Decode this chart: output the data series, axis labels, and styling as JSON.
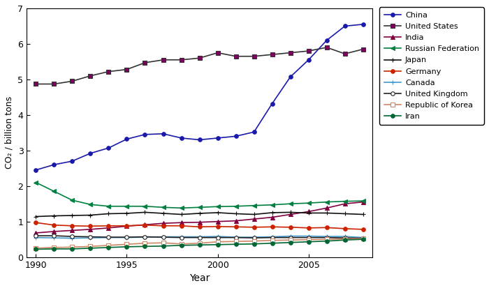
{
  "years": [
    1990,
    1991,
    1992,
    1993,
    1994,
    1995,
    1996,
    1997,
    1998,
    1999,
    2000,
    2001,
    2002,
    2003,
    2004,
    2005,
    2006,
    2007,
    2008
  ],
  "series": [
    {
      "name": "China",
      "color": "#1a1aaa",
      "line_color": "#1a1aaa",
      "marker": "o",
      "mfc": "#1a1aaa",
      "ms": 4,
      "lw": 1.2,
      "values": [
        2.45,
        2.6,
        2.7,
        2.92,
        3.07,
        3.32,
        3.45,
        3.47,
        3.35,
        3.3,
        3.35,
        3.4,
        3.52,
        4.32,
        5.07,
        5.55,
        6.1,
        6.5,
        6.55
      ]
    },
    {
      "name": "United States",
      "color": "#333333",
      "line_color": "#333333",
      "marker": "s",
      "mfc": "#800060",
      "ms": 4,
      "lw": 1.2,
      "values": [
        4.87,
        4.87,
        4.95,
        5.1,
        5.22,
        5.28,
        5.47,
        5.55,
        5.55,
        5.6,
        5.75,
        5.65,
        5.65,
        5.7,
        5.75,
        5.8,
        5.9,
        5.72,
        5.85
      ]
    },
    {
      "name": "India",
      "color": "#800040",
      "line_color": "#800040",
      "marker": "^",
      "mfc": "#800040",
      "ms": 5,
      "lw": 1.2,
      "values": [
        0.68,
        0.72,
        0.75,
        0.78,
        0.82,
        0.87,
        0.91,
        0.95,
        0.97,
        0.98,
        1.0,
        1.02,
        1.07,
        1.12,
        1.2,
        1.28,
        1.38,
        1.5,
        1.55
      ]
    },
    {
      "name": "Russian Federation",
      "color": "#008040",
      "line_color": "#008040",
      "marker": "<",
      "mfc": "#008040",
      "ms": 5,
      "lw": 1.2,
      "values": [
        2.1,
        1.85,
        1.6,
        1.48,
        1.43,
        1.43,
        1.43,
        1.4,
        1.38,
        1.4,
        1.42,
        1.43,
        1.45,
        1.47,
        1.5,
        1.52,
        1.55,
        1.57,
        1.58
      ]
    },
    {
      "name": "Japan",
      "color": "#111111",
      "line_color": "#111111",
      "marker": "+",
      "mfc": "#111111",
      "ms": 5,
      "lw": 1.2,
      "values": [
        1.14,
        1.16,
        1.17,
        1.18,
        1.22,
        1.23,
        1.26,
        1.23,
        1.2,
        1.23,
        1.25,
        1.22,
        1.2,
        1.25,
        1.26,
        1.24,
        1.24,
        1.22,
        1.2
      ]
    },
    {
      "name": "Germany",
      "color": "#cc2200",
      "line_color": "#cc2200",
      "marker": "o",
      "mfc": "#cc2200",
      "ms": 4,
      "lw": 1.2,
      "values": [
        0.97,
        0.9,
        0.88,
        0.87,
        0.88,
        0.88,
        0.9,
        0.88,
        0.88,
        0.85,
        0.86,
        0.85,
        0.84,
        0.85,
        0.84,
        0.82,
        0.83,
        0.8,
        0.78
      ]
    },
    {
      "name": "Canada",
      "color": "#4499cc",
      "line_color": "#4499cc",
      "marker": "+",
      "mfc": "#4499cc",
      "ms": 5,
      "lw": 1.2,
      "values": [
        0.55,
        0.54,
        0.53,
        0.54,
        0.55,
        0.55,
        0.56,
        0.57,
        0.57,
        0.57,
        0.58,
        0.56,
        0.56,
        0.57,
        0.59,
        0.59,
        0.58,
        0.58,
        0.55
      ]
    },
    {
      "name": "United Kingdom",
      "color": "#222222",
      "line_color": "#222222",
      "marker": "o",
      "mfc": "white",
      "ms": 4,
      "lw": 1.2,
      "values": [
        0.6,
        0.6,
        0.58,
        0.57,
        0.56,
        0.56,
        0.57,
        0.56,
        0.55,
        0.55,
        0.55,
        0.55,
        0.54,
        0.55,
        0.55,
        0.55,
        0.55,
        0.54,
        0.53
      ]
    },
    {
      "name": "Republic of Korea",
      "color": "#cc8866",
      "line_color": "#cc8866",
      "marker": "s",
      "mfc": "white",
      "ms": 4,
      "lw": 1.2,
      "values": [
        0.25,
        0.27,
        0.28,
        0.3,
        0.33,
        0.36,
        0.39,
        0.4,
        0.37,
        0.39,
        0.43,
        0.44,
        0.45,
        0.47,
        0.48,
        0.49,
        0.5,
        0.51,
        0.52
      ]
    },
    {
      "name": "Iran",
      "color": "#006633",
      "line_color": "#006633",
      "marker": "o",
      "mfc": "#006633",
      "ms": 4,
      "lw": 1.2,
      "values": [
        0.22,
        0.23,
        0.23,
        0.25,
        0.27,
        0.29,
        0.3,
        0.31,
        0.33,
        0.34,
        0.35,
        0.36,
        0.37,
        0.39,
        0.41,
        0.43,
        0.45,
        0.48,
        0.5
      ]
    }
  ],
  "xlabel": "Year",
  "ylabel": "CO₂ / billion tons",
  "ylim": [
    0,
    7
  ],
  "xlim": [
    1989.5,
    2008.5
  ],
  "yticks": [
    0,
    1,
    2,
    3,
    4,
    5,
    6,
    7
  ],
  "xticks": [
    1990,
    1995,
    2000,
    2005
  ],
  "figsize": [
    7.0,
    4.13
  ],
  "dpi": 100
}
